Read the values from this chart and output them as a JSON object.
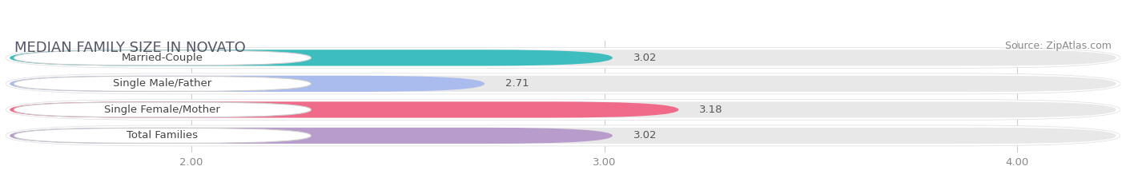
{
  "title": "MEDIAN FAMILY SIZE IN NOVATO",
  "source": "Source: ZipAtlas.com",
  "categories": [
    "Married-Couple",
    "Single Male/Father",
    "Single Female/Mother",
    "Total Families"
  ],
  "values": [
    3.02,
    2.71,
    3.18,
    3.02
  ],
  "bar_colors": [
    "#3dbdbd",
    "#aabbee",
    "#f06b8a",
    "#b89ccc"
  ],
  "bar_bg_color": "#e8e8e8",
  "xlim_min": 1.55,
  "xlim_max": 4.25,
  "xticks": [
    2.0,
    3.0,
    4.0
  ],
  "xtick_labels": [
    "2.00",
    "3.00",
    "4.00"
  ],
  "label_fontsize": 9.5,
  "value_fontsize": 9.5,
  "title_fontsize": 13,
  "source_fontsize": 9,
  "background_color": "#ffffff",
  "bar_height": 0.62,
  "bar_gap": 0.38
}
